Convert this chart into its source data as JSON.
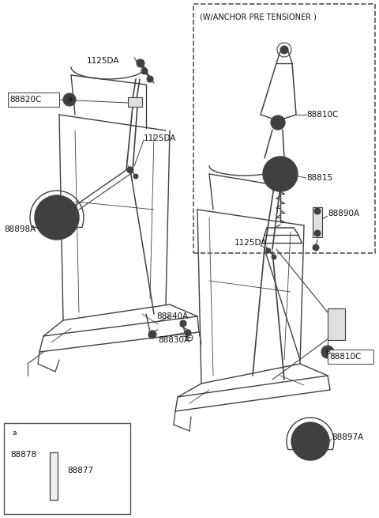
{
  "bg_color": "#ffffff",
  "line_color": "#404040",
  "text_color": "#111111",
  "fig_width": 4.8,
  "fig_height": 6.55,
  "dpi": 100,
  "labels": {
    "anchor_pre_tensioner": "(W/ANCHOR PRE TENSIONER )",
    "88810C_top": "88810C",
    "88815": "88815",
    "1125DA_topleft": "1125DA",
    "88820C": "88820C",
    "1125DA_mid": "1125DA",
    "88898A": "88898A",
    "88840A": "88840A",
    "88830A": "88830A",
    "1125DA_right": "1125DA",
    "88890A": "88890A",
    "88810C_bot": "88810C",
    "88897A": "88897A",
    "88878": "88878",
    "88877": "88877"
  }
}
